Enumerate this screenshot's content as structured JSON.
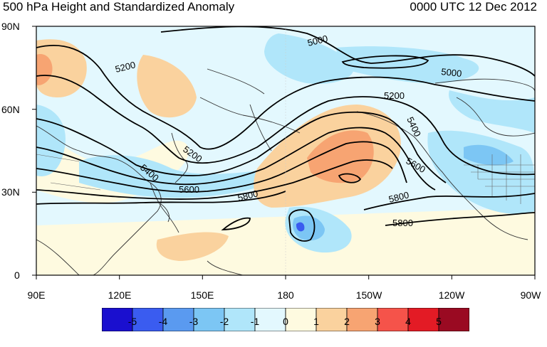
{
  "title": {
    "left": "500 hPa Height and Standardized Anomaly",
    "right": "0000 UTC 12 Dec 2012"
  },
  "axes": {
    "y_labels": [
      "90N",
      "60N",
      "30N",
      "0"
    ],
    "x_labels": [
      "90E",
      "120E",
      "150E",
      "180",
      "150W",
      "120W",
      "90W"
    ]
  },
  "contour_labels": [
    "5000",
    "5000",
    "5200",
    "5200",
    "5200",
    "5400",
    "5400",
    "5600",
    "5600",
    "5800",
    "5800",
    "5800"
  ],
  "colorbar": {
    "labels": [
      "-5",
      "-4",
      "-3",
      "-2",
      "-1",
      "0",
      "1",
      "2",
      "3",
      "4",
      "5"
    ],
    "colors": [
      "#1a0fcf",
      "#3a5cf0",
      "#5a9af0",
      "#7cc6f4",
      "#b0e6fa",
      "#e3f8fe",
      "#fefae0",
      "#fad29e",
      "#f7a472",
      "#f5534a",
      "#e31b25",
      "#9a0a22"
    ]
  },
  "colors": {
    "contour": "#000000",
    "coast": "#333333",
    "border": "#666666"
  }
}
